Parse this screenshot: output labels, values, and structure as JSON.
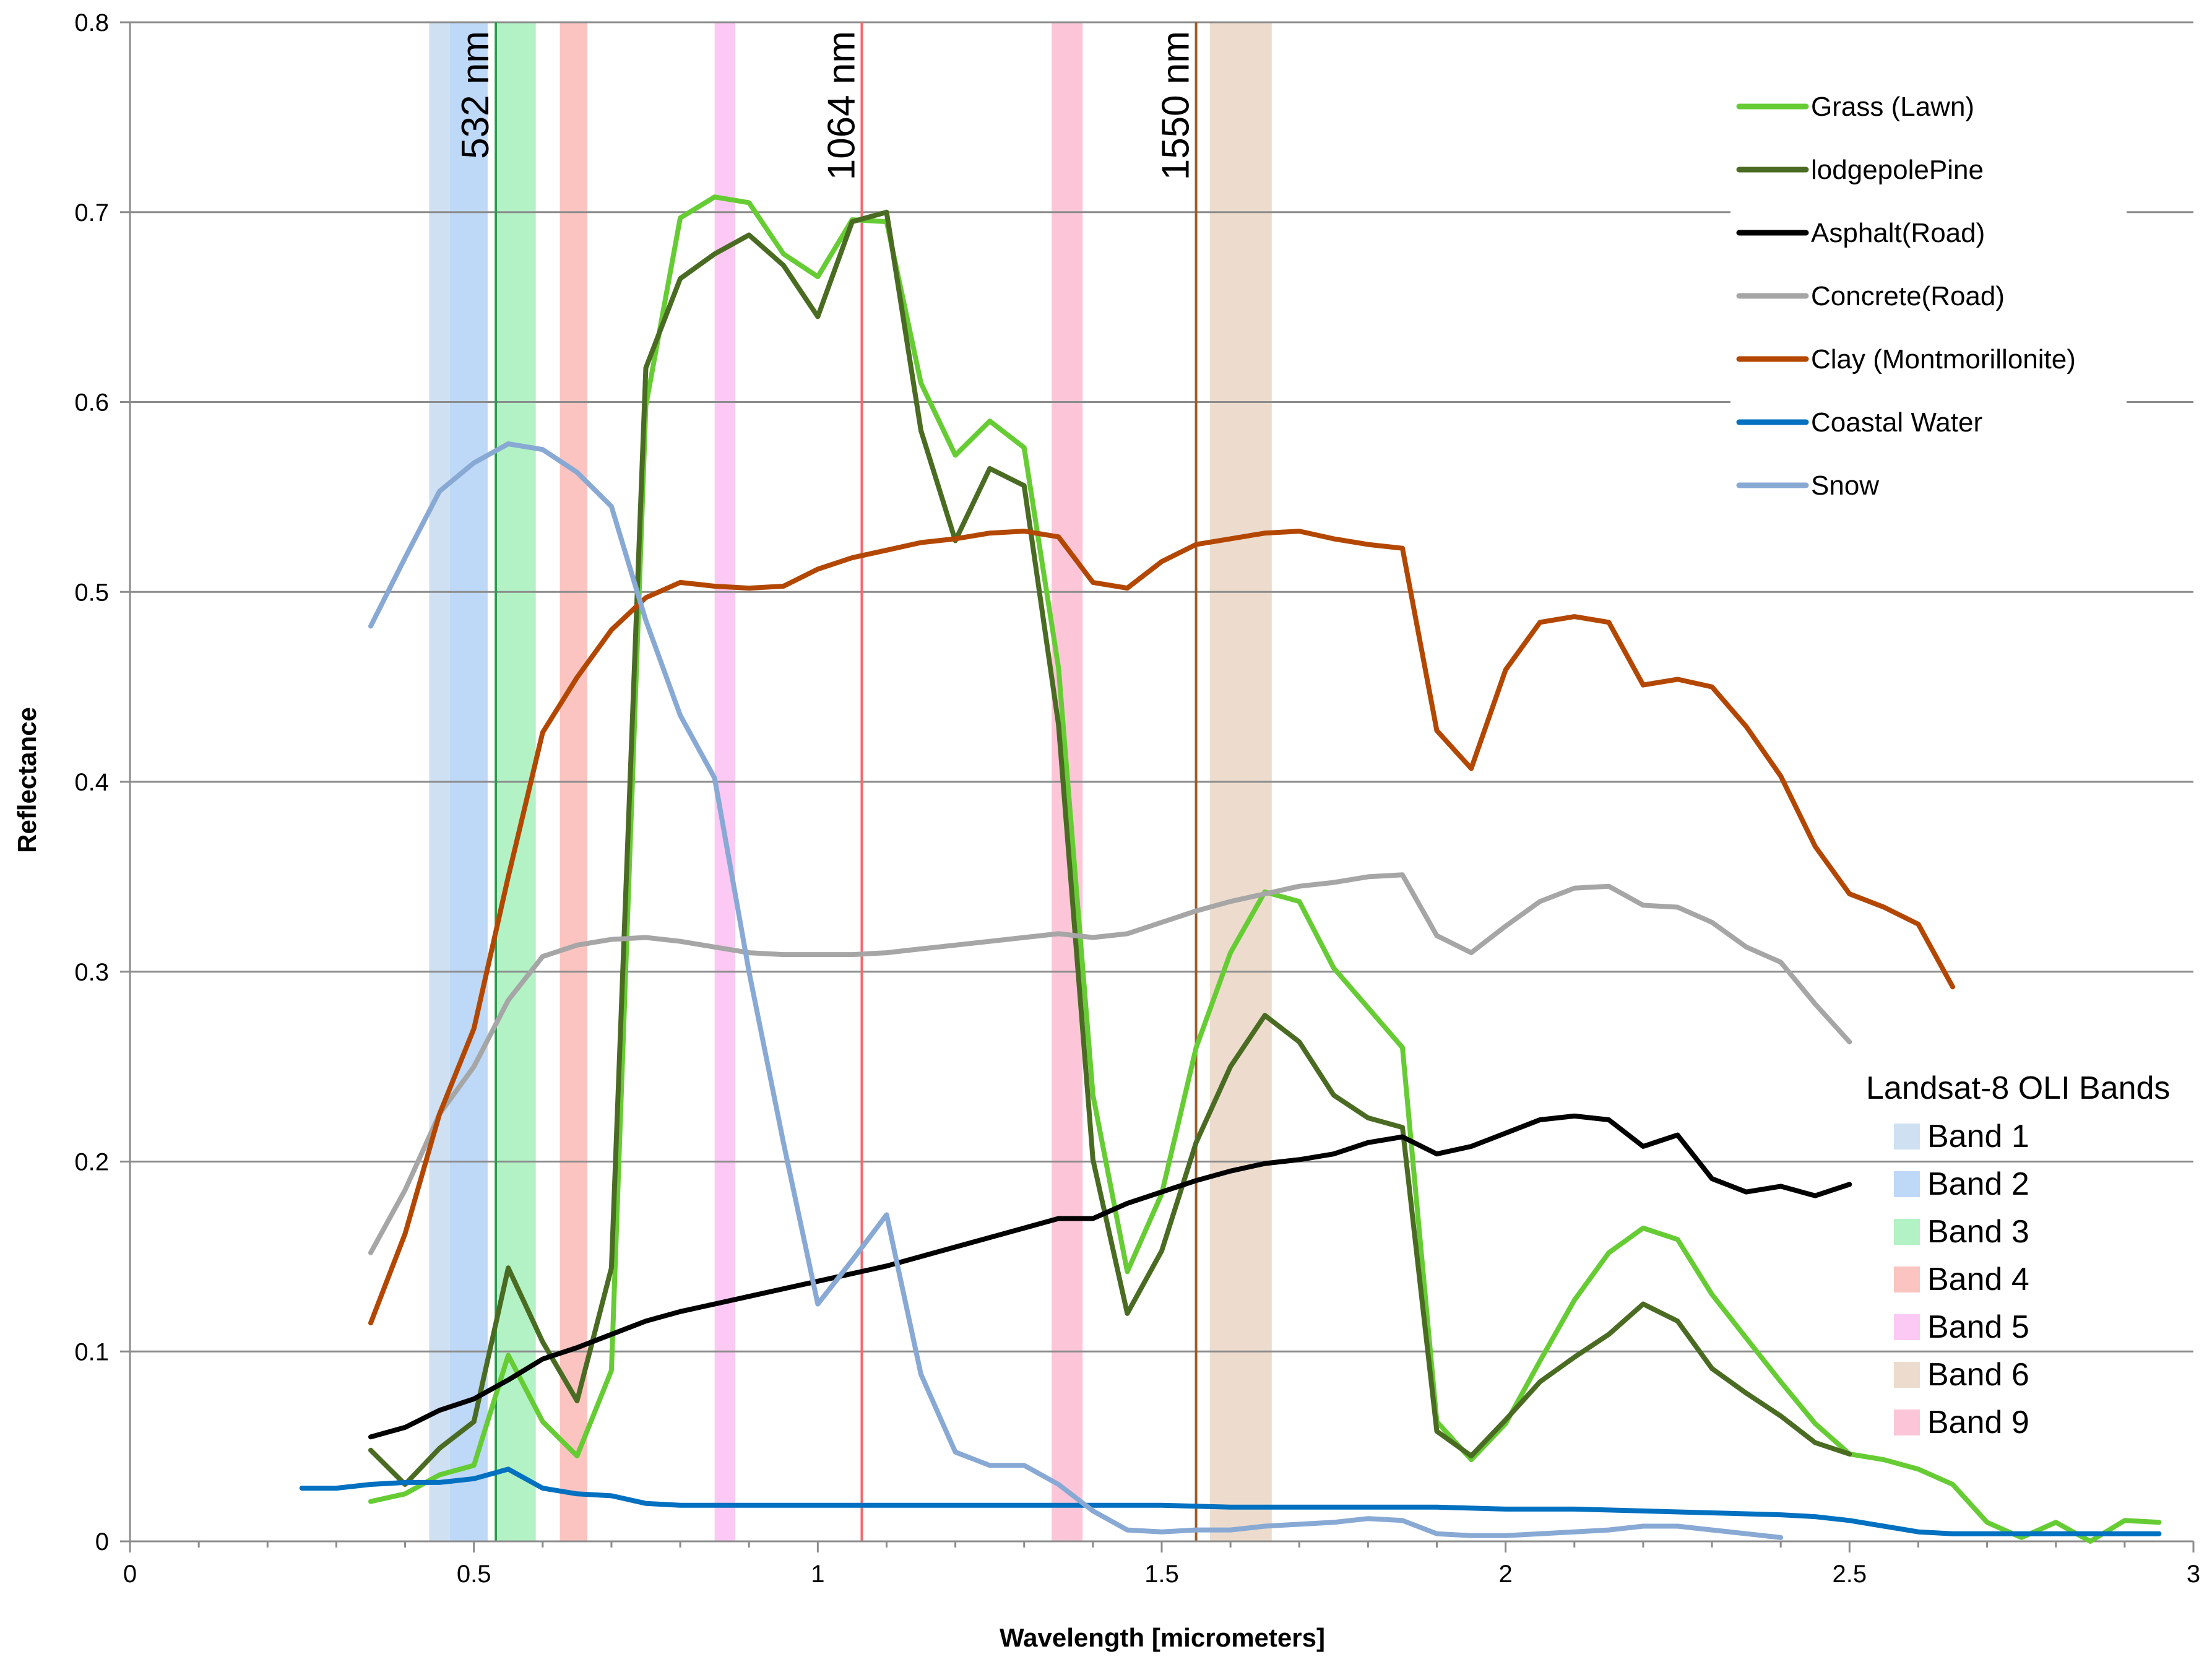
{
  "chart_data": {
    "type": "line",
    "title": "",
    "xlabel": "Wavelength [micrometers]",
    "ylabel": "Reflectance",
    "xlim": [
      0,
      3
    ],
    "ylim": [
      0,
      0.8
    ],
    "xticks": [
      "0",
      "0.5",
      "1",
      "1.5",
      "2",
      "2.5",
      "3"
    ],
    "yticks": [
      "0",
      "0.1",
      "0.2",
      "0.3",
      "0.4",
      "0.5",
      "0.6",
      "0.7",
      "0.8"
    ],
    "grid": "horizontal",
    "legend": "top-right",
    "series": [
      {
        "name": "Grass (Lawn)",
        "color": "#66cc33",
        "x": [
          0.35,
          0.4,
          0.45,
          0.5,
          0.55,
          0.6,
          0.65,
          0.7,
          0.75,
          0.8,
          0.85,
          0.9,
          0.95,
          1.0,
          1.05,
          1.1,
          1.15,
          1.2,
          1.25,
          1.3,
          1.35,
          1.4,
          1.45,
          1.5,
          1.55,
          1.6,
          1.65,
          1.7,
          1.75,
          1.8,
          1.85,
          1.9,
          1.95,
          2.0,
          2.05,
          2.1,
          2.15,
          2.2,
          2.25,
          2.3,
          2.35,
          2.4,
          2.45,
          2.5,
          2.55,
          2.6,
          2.65,
          2.7,
          2.75,
          2.8,
          2.85,
          2.9,
          2.95
        ],
        "y": [
          0.021,
          0.025,
          0.035,
          0.04,
          0.098,
          0.063,
          0.045,
          0.09,
          0.598,
          0.697,
          0.708,
          0.705,
          0.678,
          0.666,
          0.696,
          0.695,
          0.61,
          0.572,
          0.59,
          0.576,
          0.46,
          0.235,
          0.142,
          0.183,
          0.26,
          0.31,
          0.342,
          0.337,
          0.302,
          0.281,
          0.26,
          0.063,
          0.043,
          0.062,
          0.095,
          0.127,
          0.152,
          0.165,
          0.159,
          0.13,
          0.107,
          0.084,
          0.062,
          0.046,
          0.043,
          0.038,
          0.03,
          0.01,
          0.002,
          0.01,
          0.0,
          0.011,
          0.01
        ]
      },
      {
        "name": "lodgepolePine",
        "color": "#4a6b22",
        "x": [
          0.35,
          0.4,
          0.45,
          0.5,
          0.55,
          0.6,
          0.65,
          0.7,
          0.75,
          0.8,
          0.85,
          0.9,
          0.95,
          1.0,
          1.05,
          1.1,
          1.15,
          1.2,
          1.25,
          1.3,
          1.35,
          1.4,
          1.45,
          1.5,
          1.55,
          1.6,
          1.65,
          1.7,
          1.75,
          1.8,
          1.85,
          1.9,
          1.95,
          2.0,
          2.05,
          2.1,
          2.15,
          2.2,
          2.25,
          2.3,
          2.35,
          2.4,
          2.45,
          2.5
        ],
        "y": [
          0.048,
          0.03,
          0.049,
          0.063,
          0.144,
          0.105,
          0.074,
          0.144,
          0.618,
          0.665,
          0.678,
          0.688,
          0.672,
          0.645,
          0.695,
          0.7,
          0.585,
          0.527,
          0.565,
          0.556,
          0.43,
          0.201,
          0.12,
          0.153,
          0.21,
          0.25,
          0.277,
          0.263,
          0.235,
          0.223,
          0.218,
          0.058,
          0.045,
          0.064,
          0.084,
          0.097,
          0.109,
          0.125,
          0.116,
          0.091,
          0.078,
          0.066,
          0.052,
          0.046
        ]
      },
      {
        "name": "Asphalt(Road)",
        "color": "#000000",
        "x": [
          0.35,
          0.4,
          0.45,
          0.5,
          0.55,
          0.6,
          0.65,
          0.7,
          0.75,
          0.8,
          0.85,
          0.9,
          0.95,
          1.0,
          1.05,
          1.1,
          1.15,
          1.2,
          1.25,
          1.3,
          1.35,
          1.4,
          1.45,
          1.5,
          1.55,
          1.6,
          1.65,
          1.7,
          1.75,
          1.8,
          1.85,
          1.9,
          1.95,
          2.0,
          2.05,
          2.1,
          2.15,
          2.2,
          2.25,
          2.3,
          2.35,
          2.4,
          2.45,
          2.5
        ],
        "y": [
          0.055,
          0.06,
          0.069,
          0.075,
          0.085,
          0.096,
          0.102,
          0.109,
          0.116,
          0.121,
          0.125,
          0.129,
          0.133,
          0.137,
          0.141,
          0.145,
          0.15,
          0.155,
          0.16,
          0.165,
          0.17,
          0.17,
          0.178,
          0.184,
          0.19,
          0.195,
          0.199,
          0.201,
          0.204,
          0.21,
          0.213,
          0.204,
          0.208,
          0.215,
          0.222,
          0.224,
          0.222,
          0.208,
          0.214,
          0.191,
          0.184,
          0.187,
          0.182,
          0.188
        ]
      },
      {
        "name": "Concrete(Road)",
        "color": "#a6a6a6",
        "x": [
          0.35,
          0.4,
          0.45,
          0.5,
          0.55,
          0.6,
          0.65,
          0.7,
          0.75,
          0.8,
          0.85,
          0.9,
          0.95,
          1.0,
          1.05,
          1.1,
          1.15,
          1.2,
          1.25,
          1.3,
          1.35,
          1.4,
          1.45,
          1.5,
          1.55,
          1.6,
          1.65,
          1.7,
          1.75,
          1.8,
          1.85,
          1.9,
          1.95,
          2.0,
          2.05,
          2.1,
          2.15,
          2.2,
          2.25,
          2.3,
          2.35,
          2.4,
          2.45,
          2.5
        ],
        "y": [
          0.152,
          0.185,
          0.225,
          0.25,
          0.285,
          0.308,
          0.314,
          0.317,
          0.318,
          0.316,
          0.313,
          0.31,
          0.309,
          0.309,
          0.309,
          0.31,
          0.312,
          0.314,
          0.316,
          0.318,
          0.32,
          0.318,
          0.32,
          0.326,
          0.332,
          0.337,
          0.341,
          0.345,
          0.347,
          0.35,
          0.351,
          0.319,
          0.31,
          0.324,
          0.337,
          0.344,
          0.345,
          0.335,
          0.334,
          0.326,
          0.313,
          0.305,
          0.283,
          0.263
        ]
      },
      {
        "name": "Clay (Montmorillonite)",
        "color": "#b34700",
        "x": [
          0.35,
          0.4,
          0.45,
          0.5,
          0.55,
          0.6,
          0.65,
          0.7,
          0.75,
          0.8,
          0.85,
          0.9,
          0.95,
          1.0,
          1.05,
          1.1,
          1.15,
          1.2,
          1.25,
          1.3,
          1.35,
          1.4,
          1.45,
          1.5,
          1.55,
          1.6,
          1.65,
          1.7,
          1.75,
          1.8,
          1.85,
          1.9,
          1.95,
          2.0,
          2.05,
          2.1,
          2.15,
          2.2,
          2.25,
          2.3,
          2.35,
          2.4,
          2.45,
          2.5,
          2.55,
          2.6,
          2.65
        ],
        "y": [
          0.115,
          0.162,
          0.225,
          0.27,
          0.35,
          0.426,
          0.455,
          0.48,
          0.497,
          0.505,
          0.503,
          0.502,
          0.503,
          0.512,
          0.518,
          0.522,
          0.526,
          0.528,
          0.531,
          0.532,
          0.529,
          0.505,
          0.502,
          0.516,
          0.525,
          0.528,
          0.531,
          0.532,
          0.528,
          0.525,
          0.523,
          0.427,
          0.407,
          0.459,
          0.484,
          0.487,
          0.484,
          0.451,
          0.454,
          0.45,
          0.429,
          0.403,
          0.366,
          0.341,
          0.334,
          0.325,
          0.292
        ]
      },
      {
        "name": "Coastal Water",
        "color": "#0070c0",
        "x": [
          0.25,
          0.3,
          0.35,
          0.4,
          0.45,
          0.5,
          0.55,
          0.6,
          0.65,
          0.7,
          0.75,
          0.8,
          0.85,
          0.9,
          0.95,
          1.0,
          1.1,
          1.2,
          1.3,
          1.4,
          1.5,
          1.6,
          1.7,
          1.8,
          1.9,
          2.0,
          2.1,
          2.2,
          2.3,
          2.4,
          2.45,
          2.5,
          2.55,
          2.6,
          2.65,
          2.7,
          2.8,
          2.9,
          2.95
        ],
        "y": [
          0.028,
          0.028,
          0.03,
          0.031,
          0.031,
          0.033,
          0.038,
          0.028,
          0.025,
          0.024,
          0.02,
          0.019,
          0.019,
          0.019,
          0.019,
          0.019,
          0.019,
          0.019,
          0.019,
          0.019,
          0.019,
          0.018,
          0.018,
          0.018,
          0.018,
          0.017,
          0.017,
          0.016,
          0.015,
          0.014,
          0.013,
          0.011,
          0.008,
          0.005,
          0.004,
          0.004,
          0.004,
          0.004,
          0.004
        ]
      },
      {
        "name": "Snow",
        "color": "#88a9d4",
        "x": [
          0.35,
          0.4,
          0.45,
          0.5,
          0.55,
          0.6,
          0.65,
          0.7,
          0.75,
          0.8,
          0.85,
          0.9,
          0.95,
          1.0,
          1.05,
          1.1,
          1.15,
          1.2,
          1.25,
          1.3,
          1.35,
          1.4,
          1.45,
          1.5,
          1.55,
          1.6,
          1.65,
          1.7,
          1.75,
          1.8,
          1.85,
          1.9,
          1.95,
          2.0,
          2.05,
          2.1,
          2.15,
          2.2,
          2.25,
          2.3,
          2.35,
          2.4
        ],
        "y": [
          0.482,
          0.518,
          0.553,
          0.568,
          0.578,
          0.575,
          0.563,
          0.545,
          0.485,
          0.435,
          0.402,
          0.3,
          0.21,
          0.125,
          0.148,
          0.172,
          0.088,
          0.047,
          0.04,
          0.04,
          0.03,
          0.016,
          0.006,
          0.005,
          0.006,
          0.006,
          0.008,
          0.009,
          0.01,
          0.012,
          0.011,
          0.004,
          0.003,
          0.003,
          0.004,
          0.005,
          0.006,
          0.008,
          0.008,
          0.006,
          0.004,
          0.002
        ]
      }
    ],
    "bands": {
      "title": "Landsat-8 OLI Bands",
      "items": [
        {
          "name": "Band 1",
          "range": [
            0.435,
            0.465
          ],
          "color": "#cfe0f3"
        },
        {
          "name": "Band 2",
          "range": [
            0.465,
            0.52
          ],
          "color": "#bed8f7"
        },
        {
          "name": "Band 3",
          "range": [
            0.535,
            0.59
          ],
          "color": "#b2f2c5"
        },
        {
          "name": "Band 4",
          "range": [
            0.625,
            0.665
          ],
          "color": "#fbc4c0"
        },
        {
          "name": "Band 5",
          "range": [
            0.85,
            0.88
          ],
          "color": "#fbc9f3"
        },
        {
          "name": "Band 6",
          "range": [
            1.57,
            1.66
          ],
          "color": "#eddccd"
        },
        {
          "name": "Band 9",
          "range": [
            1.34,
            1.385
          ],
          "color": "#fcc6d8"
        }
      ]
    },
    "reference_lines": [
      {
        "label": "532 nm",
        "x": 0.532,
        "color": "#2e9b4c"
      },
      {
        "label": "1064 nm",
        "x": 1.064,
        "color": "#ef6c6c"
      },
      {
        "label": "1550 nm",
        "x": 1.55,
        "color": "#9c5a2a"
      }
    ]
  }
}
